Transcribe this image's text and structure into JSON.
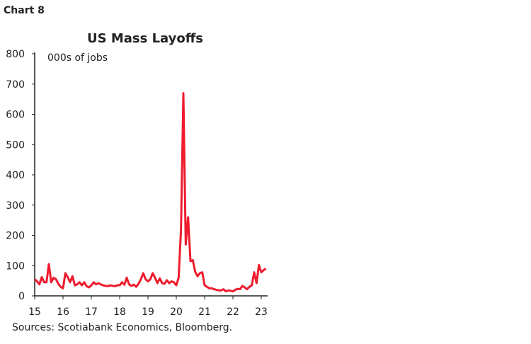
{
  "header": {
    "chart_label": "Chart 8"
  },
  "chart_data": {
    "type": "line",
    "title": "US Mass Layoffs",
    "ylabel": "000s of jobs",
    "xlabel": "",
    "ylim": [
      0,
      800
    ],
    "yticks": [
      "0",
      "100",
      "200",
      "300",
      "400",
      "500",
      "600",
      "700",
      "800"
    ],
    "xticks": [
      "15",
      "16",
      "17",
      "18",
      "19",
      "20",
      "21",
      "22",
      "23"
    ],
    "grid": false,
    "color": "#ee1c2e",
    "x_start": "2015-01",
    "frequency": "monthly",
    "series": [
      {
        "values": [
          55,
          48,
          38,
          62,
          45,
          45,
          105,
          45,
          60,
          55,
          40,
          30,
          25,
          75,
          62,
          45,
          65,
          35,
          38,
          45,
          35,
          45,
          32,
          28,
          35,
          45,
          38,
          42,
          38,
          35,
          33,
          32,
          35,
          33,
          32,
          35,
          35,
          45,
          37,
          60,
          38,
          33,
          37,
          30,
          40,
          55,
          75,
          55,
          48,
          55,
          75,
          60,
          42,
          58,
          42,
          40,
          52,
          42,
          48,
          45,
          35,
          60,
          220,
          670,
          170,
          260,
          115,
          118,
          80,
          65,
          75,
          78,
          35,
          30,
          25,
          25,
          22,
          20,
          18,
          18,
          22,
          15,
          18,
          17,
          15,
          20,
          23,
          22,
          33,
          28,
          22,
          30,
          35,
          78,
          42,
          102,
          78,
          85,
          90
        ]
      }
    ]
  },
  "footer": {
    "source": "Sources: Scotiabank Economics, Bloomberg."
  }
}
